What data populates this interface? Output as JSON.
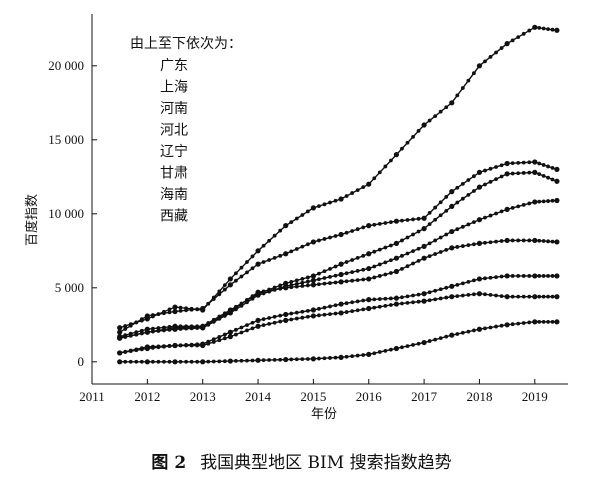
{
  "caption": {
    "figure_number": "图 2",
    "text": "我国典型地区 BIM 搜索指数趋势"
  },
  "chart_data": {
    "type": "line",
    "title": "",
    "xlabel": "年份",
    "ylabel": "百度指数",
    "xlim": [
      2011,
      2019.6
    ],
    "ylim": [
      -1500,
      23500
    ],
    "x_ticks": [
      2011,
      2012,
      2013,
      2014,
      2015,
      2016,
      2017,
      2018,
      2019
    ],
    "x_tick_labels": [
      "2011",
      "2012",
      "2013",
      "2014",
      "2015",
      "2016",
      "2017",
      "2018",
      "2019"
    ],
    "y_ticks": [
      0,
      5000,
      10000,
      15000,
      20000
    ],
    "y_tick_labels": [
      "0",
      "5 000",
      "10 000",
      "15 000",
      "20 000"
    ],
    "grid": false,
    "legend": {
      "placement": "top-left",
      "heading": "由上至下依次为：",
      "entries": [
        "广东",
        "上海",
        "河南",
        "河北",
        "辽宁",
        "甘肃",
        "海南",
        "西藏"
      ]
    },
    "line_color": "#111111",
    "series": [
      {
        "name": "广东",
        "x": [
          2011.5,
          2012.0,
          2012.5,
          2013.0,
          2013.5,
          2014.0,
          2014.5,
          2015.0,
          2015.5,
          2016.0,
          2016.5,
          2017.0,
          2017.5,
          2018.0,
          2018.5,
          2019.0,
          2019.4
        ],
        "y": [
          2300,
          2900,
          3700,
          3500,
          5600,
          7500,
          9200,
          10400,
          11000,
          12000,
          14000,
          16000,
          17500,
          20000,
          21500,
          22600,
          22400
        ]
      },
      {
        "name": "上海",
        "x": [
          2011.5,
          2012.0,
          2012.5,
          2013.0,
          2013.5,
          2014.0,
          2014.5,
          2015.0,
          2015.5,
          2016.0,
          2016.5,
          2017.0,
          2017.5,
          2018.0,
          2018.5,
          2019.0,
          2019.4
        ],
        "y": [
          2000,
          3100,
          3400,
          3600,
          5200,
          6600,
          7300,
          8100,
          8600,
          9200,
          9500,
          9700,
          11500,
          12800,
          13400,
          13500,
          13000
        ]
      },
      {
        "name": "河南",
        "x": [
          2011.5,
          2012.0,
          2012.5,
          2013.0,
          2013.5,
          2014.0,
          2014.5,
          2015.0,
          2015.5,
          2016.0,
          2016.5,
          2017.0,
          2017.5,
          2018.0,
          2018.5,
          2019.0,
          2019.4
        ],
        "y": [
          1700,
          2200,
          2400,
          2400,
          3500,
          4600,
          5300,
          5800,
          6600,
          7300,
          8000,
          9000,
          10500,
          11800,
          12700,
          12800,
          12200
        ]
      },
      {
        "name": "河北",
        "x": [
          2011.5,
          2012.0,
          2012.5,
          2013.0,
          2013.5,
          2014.0,
          2014.5,
          2015.0,
          2015.5,
          2016.0,
          2016.5,
          2017.0,
          2017.5,
          2018.0,
          2018.5,
          2019.0,
          2019.4
        ],
        "y": [
          1600,
          2000,
          2300,
          2300,
          3300,
          4500,
          5100,
          5500,
          5900,
          6300,
          7000,
          7800,
          8800,
          9600,
          10300,
          10800,
          10900
        ]
      },
      {
        "name": "辽宁",
        "x": [
          2011.5,
          2012.0,
          2012.5,
          2013.0,
          2013.5,
          2014.0,
          2014.5,
          2015.0,
          2015.5,
          2016.0,
          2016.5,
          2017.0,
          2017.5,
          2018.0,
          2018.5,
          2019.0,
          2019.4
        ],
        "y": [
          1600,
          2000,
          2200,
          2300,
          3400,
          4700,
          5000,
          5200,
          5400,
          5600,
          6100,
          7000,
          7700,
          8000,
          8200,
          8200,
          8100
        ]
      },
      {
        "name": "甘肃",
        "x": [
          2011.5,
          2012.0,
          2012.5,
          2013.0,
          2013.5,
          2014.0,
          2014.5,
          2015.0,
          2015.5,
          2016.0,
          2016.5,
          2017.0,
          2017.5,
          2018.0,
          2018.5,
          2019.0,
          2019.4
        ],
        "y": [
          600,
          1000,
          1100,
          1200,
          2000,
          2800,
          3200,
          3500,
          3900,
          4200,
          4300,
          4600,
          5100,
          5600,
          5800,
          5800,
          5800
        ]
      },
      {
        "name": "海南",
        "x": [
          2011.5,
          2012.0,
          2012.5,
          2013.0,
          2013.5,
          2014.0,
          2014.5,
          2015.0,
          2015.5,
          2016.0,
          2016.5,
          2017.0,
          2017.5,
          2018.0,
          2018.5,
          2019.0,
          2019.4
        ],
        "y": [
          600,
          900,
          1100,
          1100,
          1700,
          2400,
          2800,
          3100,
          3300,
          3600,
          3900,
          4100,
          4400,
          4600,
          4400,
          4400,
          4400
        ]
      },
      {
        "name": "西藏",
        "x": [
          2011.5,
          2012.0,
          2012.5,
          2013.0,
          2013.5,
          2014.0,
          2014.5,
          2015.0,
          2015.5,
          2016.0,
          2016.5,
          2017.0,
          2017.5,
          2018.0,
          2018.5,
          2019.0,
          2019.4
        ],
        "y": [
          0,
          0,
          0,
          0,
          50,
          100,
          150,
          200,
          300,
          500,
          900,
          1300,
          1800,
          2200,
          2500,
          2700,
          2700
        ]
      }
    ]
  }
}
